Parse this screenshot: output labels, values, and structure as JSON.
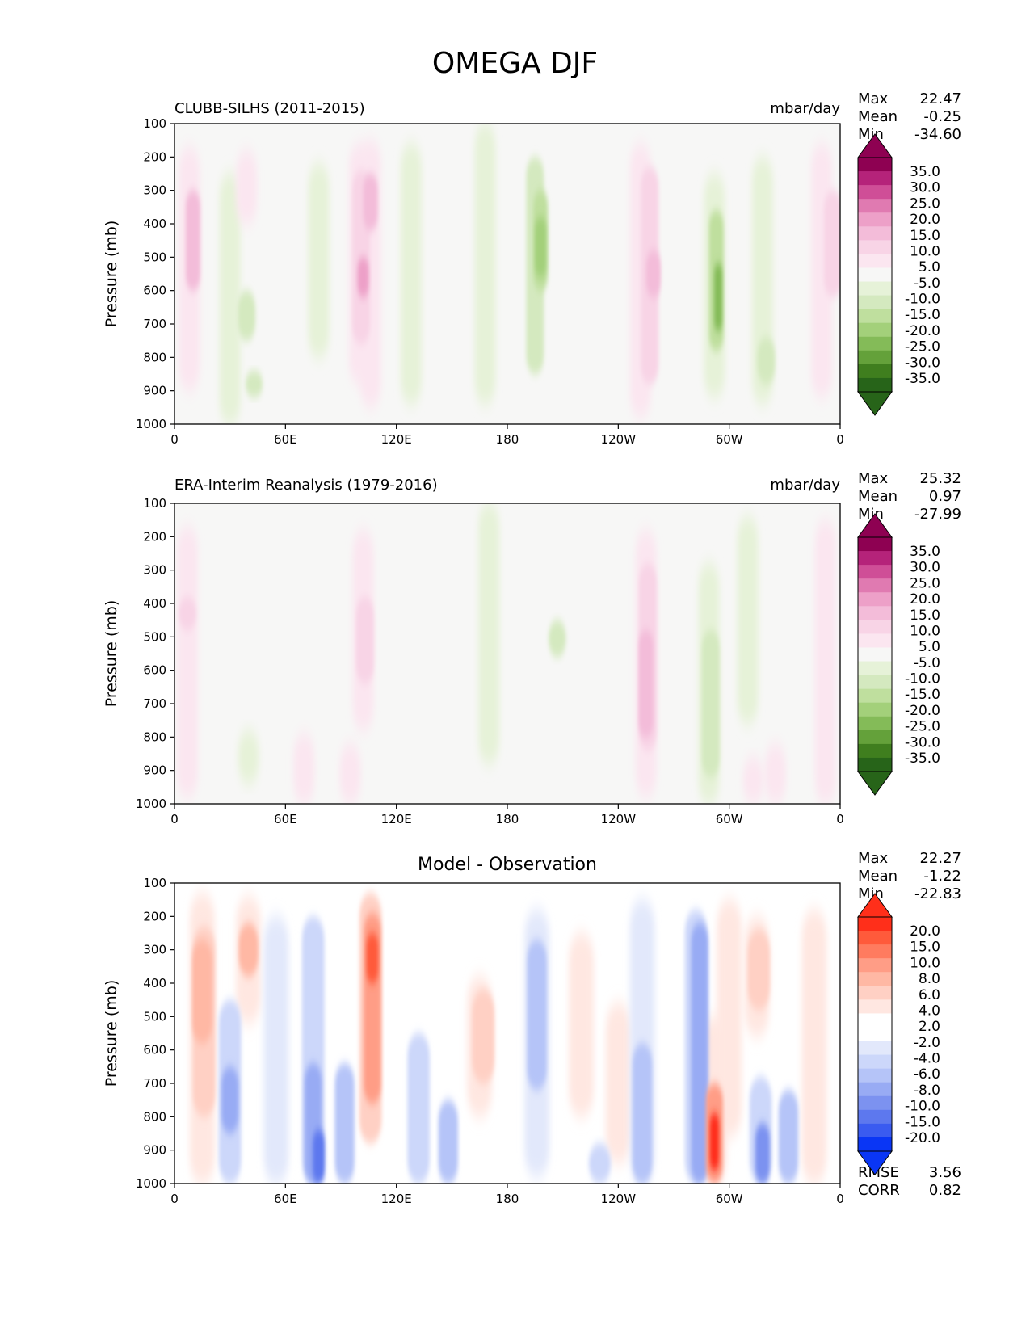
{
  "figure": {
    "title": "OMEGA DJF"
  },
  "colors": {
    "panel_bg_top": "#f7f7f6",
    "pos_scale": [
      "#fbe6f0",
      "#f8d4e6",
      "#f3bcd9",
      "#eda0c8",
      "#e07ab1",
      "#cf4e97",
      "#b5237a",
      "#8e0152"
    ],
    "neg_scale": [
      "#e6f2d8",
      "#d4e9bf",
      "#bfdf9e",
      "#a3d07a",
      "#84bb58",
      "#64a13a",
      "#3f7e1e",
      "#276419"
    ],
    "diff_pos": [
      "#ffe7e1",
      "#ffd0c4",
      "#ffb8a4",
      "#ff9d86",
      "#ff7b5f",
      "#ff5a3b",
      "#ff2f1a"
    ],
    "diff_neg": [
      "#e2e8fb",
      "#ccd7fa",
      "#b5c4f8",
      "#98abf4",
      "#7c92f0",
      "#5d78ee",
      "#3a5bf0",
      "#0a36f5"
    ]
  },
  "chart_data": [
    {
      "type": "contour",
      "panel": "model",
      "title": "CLUBB-SILHS (2011-2015)",
      "units": "mbar/day",
      "ylabel": "Pressure (mb)",
      "yticks": [
        "100",
        "200",
        "300",
        "400",
        "500",
        "600",
        "700",
        "800",
        "900",
        "1000"
      ],
      "xticks": [
        "0",
        "60E",
        "120E",
        "180",
        "120W",
        "60W",
        "0"
      ],
      "xlim": [
        0,
        360
      ],
      "ylim": [
        100,
        1000
      ],
      "stats": {
        "max_label": "Max",
        "max": "22.47",
        "mean_label": "Mean",
        "mean": "-0.25",
        "min_label": "Min",
        "min": "-34.60"
      },
      "colorbar_labels": [
        "35.0",
        "30.0",
        "25.0",
        "20.0",
        "15.0",
        "10.0",
        "5.0",
        "-5.0",
        "-10.0",
        "-15.0",
        "-20.0",
        "-25.0",
        "-30.0",
        "-35.0"
      ],
      "features": [
        {
          "lon": 8,
          "p0": 170,
          "p1": 900,
          "level": 1
        },
        {
          "lon": 10,
          "p0": 300,
          "p1": 600,
          "level": 3
        },
        {
          "lon": 30,
          "p0": 250,
          "p1": 1000,
          "level": -1
        },
        {
          "lon": 39,
          "p0": 600,
          "p1": 750,
          "level": -2
        },
        {
          "lon": 43,
          "p0": 840,
          "p1": 920,
          "level": -2
        },
        {
          "lon": 39,
          "p0": 180,
          "p1": 400,
          "level": 1
        },
        {
          "lon": 78,
          "p0": 220,
          "p1": 800,
          "level": -1
        },
        {
          "lon": 100,
          "p0": 160,
          "p1": 880,
          "level": 1
        },
        {
          "lon": 101,
          "p0": 240,
          "p1": 760,
          "level": 2
        },
        {
          "lon": 102,
          "p0": 500,
          "p1": 620,
          "level": 4
        },
        {
          "lon": 106,
          "p0": 150,
          "p1": 950,
          "level": 1
        },
        {
          "lon": 106,
          "p0": 250,
          "p1": 420,
          "level": 3
        },
        {
          "lon": 128,
          "p0": 160,
          "p1": 940,
          "level": -1
        },
        {
          "lon": 168,
          "p0": 100,
          "p1": 940,
          "level": -1
        },
        {
          "lon": 195,
          "p0": 200,
          "p1": 850,
          "level": -2
        },
        {
          "lon": 198,
          "p0": 300,
          "p1": 600,
          "level": -3
        },
        {
          "lon": 198,
          "p0": 380,
          "p1": 560,
          "level": -4
        },
        {
          "lon": 252,
          "p0": 160,
          "p1": 980,
          "level": 1
        },
        {
          "lon": 257,
          "p0": 230,
          "p1": 880,
          "level": 2
        },
        {
          "lon": 259,
          "p0": 480,
          "p1": 620,
          "level": 3
        },
        {
          "lon": 292,
          "p0": 250,
          "p1": 920,
          "level": -1
        },
        {
          "lon": 293,
          "p0": 360,
          "p1": 780,
          "level": -3
        },
        {
          "lon": 294,
          "p0": 520,
          "p1": 720,
          "level": -5
        },
        {
          "lon": 318,
          "p0": 200,
          "p1": 940,
          "level": -1
        },
        {
          "lon": 320,
          "p0": 740,
          "p1": 880,
          "level": -2
        },
        {
          "lon": 350,
          "p0": 160,
          "p1": 920,
          "level": 1
        },
        {
          "lon": 356,
          "p0": 300,
          "p1": 620,
          "level": 2
        }
      ]
    },
    {
      "type": "contour",
      "panel": "observation",
      "title": "ERA-Interim Reanalysis (1979-2016)",
      "units": "mbar/day",
      "ylabel": "Pressure (mb)",
      "yticks": [
        "100",
        "200",
        "300",
        "400",
        "500",
        "600",
        "700",
        "800",
        "900",
        "1000"
      ],
      "xticks": [
        "0",
        "60E",
        "120E",
        "180",
        "120W",
        "60W",
        "0"
      ],
      "xlim": [
        0,
        360
      ],
      "ylim": [
        100,
        1000
      ],
      "stats": {
        "max_label": "Max",
        "max": "25.32",
        "mean_label": "Mean",
        "mean": "0.97",
        "min_label": "Min",
        "min": "-27.99"
      },
      "colorbar_labels": [
        "35.0",
        "30.0",
        "25.0",
        "20.0",
        "15.0",
        "10.0",
        "5.0",
        "-5.0",
        "-10.0",
        "-15.0",
        "-20.0",
        "-25.0",
        "-30.0",
        "-35.0"
      ],
      "features": [
        {
          "lon": 7,
          "p0": 170,
          "p1": 980,
          "level": 1
        },
        {
          "lon": 7,
          "p0": 380,
          "p1": 480,
          "level": 2
        },
        {
          "lon": 40,
          "p0": 780,
          "p1": 940,
          "level": -1
        },
        {
          "lon": 70,
          "p0": 790,
          "p1": 1000,
          "level": 1
        },
        {
          "lon": 95,
          "p0": 820,
          "p1": 1000,
          "level": 1
        },
        {
          "lon": 102,
          "p0": 180,
          "p1": 780,
          "level": 1
        },
        {
          "lon": 103,
          "p0": 380,
          "p1": 640,
          "level": 2
        },
        {
          "lon": 170,
          "p0": 100,
          "p1": 880,
          "level": -1
        },
        {
          "lon": 207,
          "p0": 450,
          "p1": 560,
          "level": -2
        },
        {
          "lon": 255,
          "p0": 180,
          "p1": 980,
          "level": 1
        },
        {
          "lon": 256,
          "p0": 280,
          "p1": 840,
          "level": 2
        },
        {
          "lon": 255,
          "p0": 480,
          "p1": 800,
          "level": 3
        },
        {
          "lon": 289,
          "p0": 280,
          "p1": 1000,
          "level": -1
        },
        {
          "lon": 290,
          "p0": 480,
          "p1": 920,
          "level": -2
        },
        {
          "lon": 310,
          "p0": 140,
          "p1": 760,
          "level": -1
        },
        {
          "lon": 313,
          "p0": 860,
          "p1": 1000,
          "level": 1
        },
        {
          "lon": 325,
          "p0": 820,
          "p1": 1000,
          "level": 1
        },
        {
          "lon": 352,
          "p0": 150,
          "p1": 1000,
          "level": 1
        }
      ]
    },
    {
      "type": "contour",
      "panel": "difference",
      "title": "Model - Observation",
      "ylabel": "Pressure (mb)",
      "yticks": [
        "100",
        "200",
        "300",
        "400",
        "500",
        "600",
        "700",
        "800",
        "900",
        "1000"
      ],
      "xticks": [
        "0",
        "60E",
        "120E",
        "180",
        "120W",
        "60W",
        "0"
      ],
      "xlim": [
        0,
        360
      ],
      "ylim": [
        100,
        1000
      ],
      "stats": {
        "max_label": "Max",
        "max": "22.27",
        "mean_label": "Mean",
        "mean": "-1.22",
        "min_label": "Min",
        "min": "-22.83"
      },
      "colorbar_labels": [
        "20.0",
        "15.0",
        "10.0",
        "8.0",
        "6.0",
        "4.0",
        "2.0",
        "-2.0",
        "-4.0",
        "-6.0",
        "-8.0",
        "-10.0",
        "-15.0",
        "-20.0"
      ],
      "rmse_label": "RMSE",
      "rmse": "3.56",
      "corr_label": "CORR",
      "corr": "0.82",
      "features": [
        {
          "lon": 15,
          "p0": 130,
          "p1": 1000,
          "level": 1
        },
        {
          "lon": 16,
          "p0": 230,
          "p1": 800,
          "level": 2
        },
        {
          "lon": 15,
          "p0": 270,
          "p1": 580,
          "level": 3
        },
        {
          "lon": 30,
          "p0": 450,
          "p1": 1000,
          "level": -2
        },
        {
          "lon": 30,
          "p0": 650,
          "p1": 850,
          "level": -4
        },
        {
          "lon": 40,
          "p0": 140,
          "p1": 520,
          "level": 1
        },
        {
          "lon": 40,
          "p0": 220,
          "p1": 380,
          "level": 3
        },
        {
          "lon": 55,
          "p0": 200,
          "p1": 1000,
          "level": -1
        },
        {
          "lon": 75,
          "p0": 200,
          "p1": 1000,
          "level": -2
        },
        {
          "lon": 75,
          "p0": 640,
          "p1": 1000,
          "level": -4
        },
        {
          "lon": 78,
          "p0": 840,
          "p1": 1000,
          "level": -6
        },
        {
          "lon": 92,
          "p0": 640,
          "p1": 1000,
          "level": -3
        },
        {
          "lon": 106,
          "p0": 130,
          "p1": 880,
          "level": 2
        },
        {
          "lon": 107,
          "p0": 190,
          "p1": 760,
          "level": 4
        },
        {
          "lon": 107,
          "p0": 250,
          "p1": 400,
          "level": 6
        },
        {
          "lon": 132,
          "p0": 550,
          "p1": 1000,
          "level": -2
        },
        {
          "lon": 148,
          "p0": 750,
          "p1": 1000,
          "level": -3
        },
        {
          "lon": 165,
          "p0": 380,
          "p1": 800,
          "level": 1
        },
        {
          "lon": 167,
          "p0": 420,
          "p1": 700,
          "level": 2
        },
        {
          "lon": 196,
          "p0": 180,
          "p1": 980,
          "level": -1
        },
        {
          "lon": 196,
          "p0": 270,
          "p1": 720,
          "level": -3
        },
        {
          "lon": 220,
          "p0": 250,
          "p1": 800,
          "level": 1
        },
        {
          "lon": 230,
          "p0": 880,
          "p1": 1000,
          "level": -2
        },
        {
          "lon": 240,
          "p0": 460,
          "p1": 940,
          "level": 1
        },
        {
          "lon": 253,
          "p0": 150,
          "p1": 1000,
          "level": -1
        },
        {
          "lon": 253,
          "p0": 580,
          "p1": 1000,
          "level": -3
        },
        {
          "lon": 282,
          "p0": 180,
          "p1": 1000,
          "level": -2
        },
        {
          "lon": 284,
          "p0": 220,
          "p1": 1000,
          "level": -4
        },
        {
          "lon": 292,
          "p0": 500,
          "p1": 1000,
          "level": 1
        },
        {
          "lon": 292,
          "p0": 700,
          "p1": 1000,
          "level": 4
        },
        {
          "lon": 292,
          "p0": 790,
          "p1": 960,
          "level": 7
        },
        {
          "lon": 300,
          "p0": 150,
          "p1": 860,
          "level": 1
        },
        {
          "lon": 315,
          "p0": 200,
          "p1": 560,
          "level": 1
        },
        {
          "lon": 316,
          "p0": 240,
          "p1": 480,
          "level": 2
        },
        {
          "lon": 317,
          "p0": 680,
          "p1": 1000,
          "level": -2
        },
        {
          "lon": 318,
          "p0": 820,
          "p1": 1000,
          "level": -5
        },
        {
          "lon": 332,
          "p0": 720,
          "p1": 1000,
          "level": -3
        },
        {
          "lon": 346,
          "p0": 180,
          "p1": 1000,
          "level": 1
        }
      ]
    }
  ]
}
